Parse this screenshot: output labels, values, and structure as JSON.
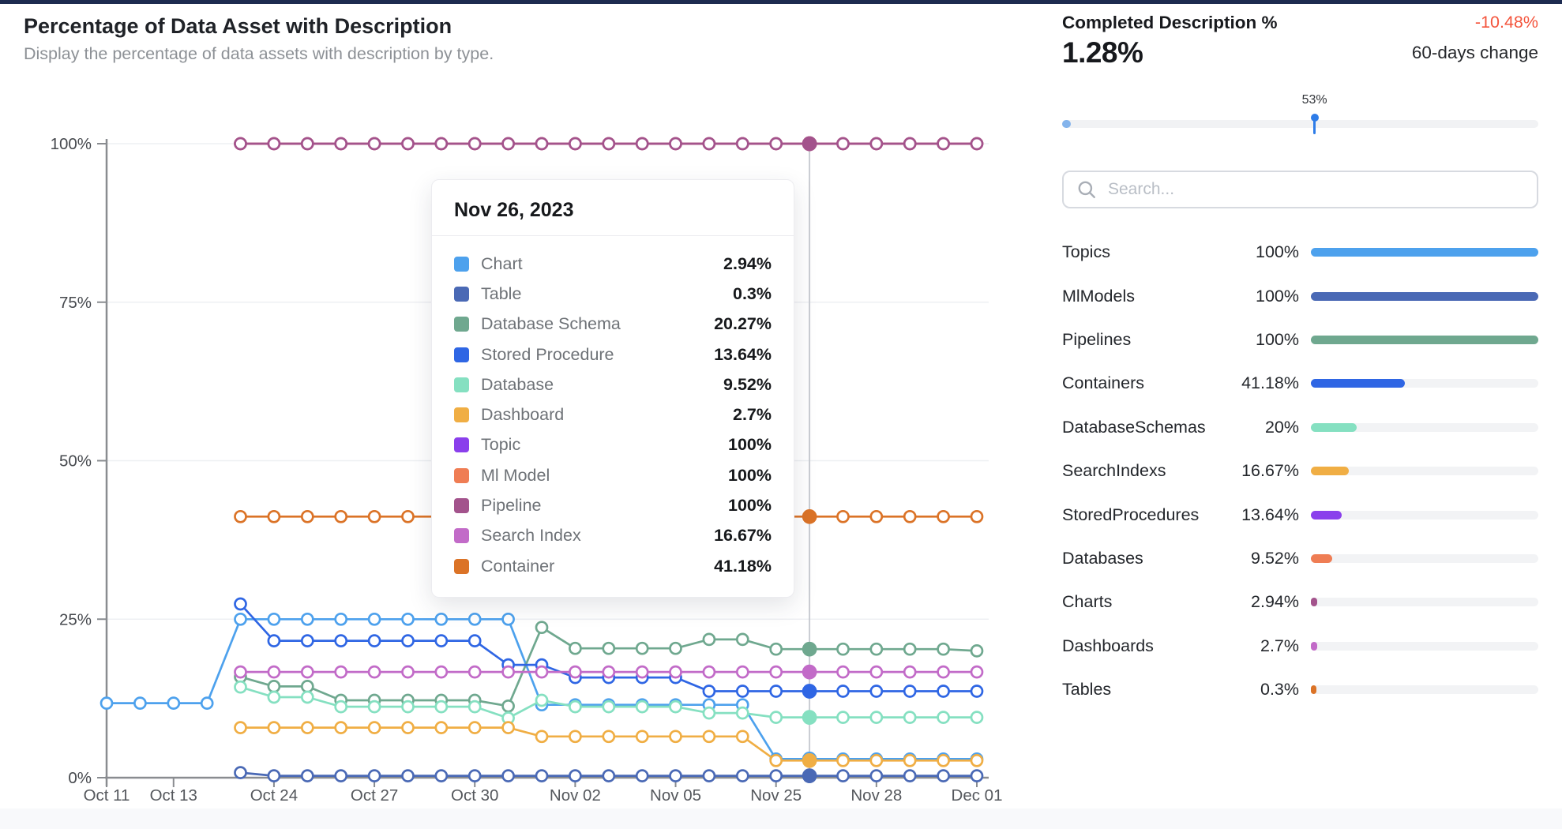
{
  "page": {
    "top_accent_color": "#1d2b50"
  },
  "header": {
    "title": "Percentage of Data Asset with Description",
    "subtitle": "Display the percentage of data assets with description by type."
  },
  "chart_data": {
    "type": "line",
    "title": "Percentage of Data Asset with Description",
    "ylim": [
      0,
      100
    ],
    "grid": true,
    "point_count": 27,
    "highlight_index": 21,
    "highlight_date": "Nov 26, 2023",
    "y_ticks": [
      {
        "value": 0,
        "label": "0%"
      },
      {
        "value": 25,
        "label": "25%"
      },
      {
        "value": 50,
        "label": "50%"
      },
      {
        "value": 75,
        "label": "75%"
      },
      {
        "value": 100,
        "label": "100%"
      }
    ],
    "x_ticks": [
      {
        "index": 0,
        "label": "Oct 11"
      },
      {
        "index": 2,
        "label": "Oct 13"
      },
      {
        "index": 5,
        "label": "Oct 24"
      },
      {
        "index": 8,
        "label": "Oct 27"
      },
      {
        "index": 11,
        "label": "Oct 30"
      },
      {
        "index": 14,
        "label": "Nov 02"
      },
      {
        "index": 17,
        "label": "Nov 05"
      },
      {
        "index": 20,
        "label": "Nov 25"
      },
      {
        "index": 23,
        "label": "Nov 28"
      },
      {
        "index": 26,
        "label": "Dec 01"
      }
    ],
    "series": [
      {
        "name": "Chart",
        "color": "#4DA1ED",
        "values": [
          11.76,
          11.76,
          11.76,
          11.76,
          25,
          25,
          25,
          25,
          25,
          25,
          25,
          25,
          25,
          11.5,
          11.5,
          11.5,
          11.5,
          11.5,
          11.5,
          11.5,
          2.94,
          2.94,
          2.94,
          2.94,
          2.94,
          2.94,
          2.94
        ]
      },
      {
        "name": "Table",
        "color": "#4A69B5",
        "values": [
          null,
          null,
          null,
          null,
          0.8,
          0.3,
          0.3,
          0.3,
          0.3,
          0.3,
          0.3,
          0.3,
          0.3,
          0.3,
          0.3,
          0.3,
          0.3,
          0.3,
          0.3,
          0.3,
          0.3,
          0.3,
          0.3,
          0.3,
          0.3,
          0.3,
          0.3
        ]
      },
      {
        "name": "Database Schema",
        "color": "#6FA88F",
        "values": [
          null,
          null,
          null,
          null,
          15.9,
          14.4,
          14.4,
          12.2,
          12.2,
          12.2,
          12.2,
          12.2,
          11.3,
          23.7,
          20.4,
          20.4,
          20.4,
          20.4,
          21.8,
          21.8,
          20.27,
          20.27,
          20.27,
          20.27,
          20.27,
          20.27,
          20
        ]
      },
      {
        "name": "Stored Procedure",
        "color": "#2F66E4",
        "values": [
          null,
          null,
          null,
          null,
          27.4,
          21.6,
          21.6,
          21.6,
          21.6,
          21.6,
          21.6,
          21.6,
          17.8,
          17.8,
          15.8,
          15.8,
          15.8,
          15.8,
          13.64,
          13.64,
          13.64,
          13.64,
          13.64,
          13.64,
          13.64,
          13.64,
          13.64
        ]
      },
      {
        "name": "Database",
        "color": "#85E0C1",
        "values": [
          null,
          null,
          null,
          null,
          14.3,
          12.7,
          12.7,
          11.2,
          11.2,
          11.2,
          11.2,
          11.2,
          9.4,
          12.2,
          11.2,
          11.2,
          11.2,
          11.2,
          10.2,
          10.2,
          9.52,
          9.52,
          9.52,
          9.52,
          9.52,
          9.52,
          9.52
        ]
      },
      {
        "name": "Dashboard",
        "color": "#F0AE44",
        "values": [
          null,
          null,
          null,
          null,
          7.9,
          7.9,
          7.9,
          7.9,
          7.9,
          7.9,
          7.9,
          7.9,
          7.9,
          6.5,
          6.5,
          6.5,
          6.5,
          6.5,
          6.5,
          6.5,
          2.7,
          2.7,
          2.7,
          2.7,
          2.7,
          2.7,
          2.7
        ]
      },
      {
        "name": "Topic",
        "color": "#8A3FEC",
        "values": [
          null,
          null,
          null,
          null,
          100,
          100,
          100,
          100,
          100,
          100,
          100,
          100,
          100,
          100,
          100,
          100,
          100,
          100,
          100,
          100,
          100,
          100,
          100,
          100,
          100,
          100,
          100
        ]
      },
      {
        "name": "Ml Model",
        "color": "#EF7D54",
        "values": [
          null,
          null,
          null,
          null,
          100,
          100,
          100,
          100,
          100,
          100,
          100,
          100,
          100,
          100,
          100,
          100,
          100,
          100,
          100,
          100,
          100,
          100,
          100,
          100,
          100,
          100,
          100
        ]
      },
      {
        "name": "Pipeline",
        "color": "#A3538C",
        "values": [
          null,
          null,
          null,
          null,
          100,
          100,
          100,
          100,
          100,
          100,
          100,
          100,
          100,
          100,
          100,
          100,
          100,
          100,
          100,
          100,
          100,
          100,
          100,
          100,
          100,
          100,
          100
        ]
      },
      {
        "name": "Search Index",
        "color": "#C26BC8",
        "values": [
          null,
          null,
          null,
          null,
          16.67,
          16.67,
          16.67,
          16.67,
          16.67,
          16.67,
          16.67,
          16.67,
          16.67,
          16.67,
          16.67,
          16.67,
          16.67,
          16.67,
          16.67,
          16.67,
          16.67,
          16.67,
          16.67,
          16.67,
          16.67,
          16.67,
          16.67
        ]
      },
      {
        "name": "Container",
        "color": "#DB7327",
        "values": [
          null,
          null,
          null,
          null,
          41.18,
          41.18,
          41.18,
          41.18,
          41.18,
          41.18,
          41.18,
          41.18,
          41.18,
          41.18,
          41.18,
          41.18,
          41.18,
          41.18,
          41.18,
          41.18,
          41.18,
          41.18,
          41.18,
          41.18,
          41.18,
          41.18,
          41.18
        ]
      }
    ]
  },
  "tooltip": {
    "date": "Nov 26, 2023",
    "rows": [
      {
        "label": "Chart",
        "value": "2.94%",
        "color": "#4DA1ED"
      },
      {
        "label": "Table",
        "value": "0.3%",
        "color": "#4A69B5"
      },
      {
        "label": "Database Schema",
        "value": "20.27%",
        "color": "#6FA88F"
      },
      {
        "label": "Stored Procedure",
        "value": "13.64%",
        "color": "#2F66E4"
      },
      {
        "label": "Database",
        "value": "9.52%",
        "color": "#85E0C1"
      },
      {
        "label": "Dashboard",
        "value": "2.7%",
        "color": "#F0AE44"
      },
      {
        "label": "Topic",
        "value": "100%",
        "color": "#8A3FEC"
      },
      {
        "label": "Ml Model",
        "value": "100%",
        "color": "#EF7D54"
      },
      {
        "label": "Pipeline",
        "value": "100%",
        "color": "#A3538C"
      },
      {
        "label": "Search Index",
        "value": "16.67%",
        "color": "#C26BC8"
      },
      {
        "label": "Container",
        "value": "41.18%",
        "color": "#DB7327"
      }
    ]
  },
  "panel": {
    "title": "Completed Description %",
    "value": "1.28%",
    "change": "-10.48%",
    "change_color": "#f4543c",
    "change_label": "60-days change",
    "slider": {
      "label": "53%",
      "percent": 53,
      "fill_percent": 1.28,
      "accent_color": "#2e7ce8"
    },
    "search": {
      "placeholder": "Search..."
    },
    "items": [
      {
        "label": "Topics",
        "value": "100%",
        "percent": 100,
        "color": "#4DA1ED"
      },
      {
        "label": "MlModels",
        "value": "100%",
        "percent": 100,
        "color": "#4A69B5"
      },
      {
        "label": "Pipelines",
        "value": "100%",
        "percent": 100,
        "color": "#6FA88F"
      },
      {
        "label": "Containers",
        "value": "41.18%",
        "percent": 41.18,
        "color": "#2F66E4"
      },
      {
        "label": "DatabaseSchemas",
        "value": "20%",
        "percent": 20,
        "color": "#85E0C1"
      },
      {
        "label": "SearchIndexs",
        "value": "16.67%",
        "percent": 16.67,
        "color": "#F0AE44"
      },
      {
        "label": "StoredProcedures",
        "value": "13.64%",
        "percent": 13.64,
        "color": "#8A3FEC"
      },
      {
        "label": "Databases",
        "value": "9.52%",
        "percent": 9.52,
        "color": "#EF7D54"
      },
      {
        "label": "Charts",
        "value": "2.94%",
        "percent": 2.94,
        "color": "#A3538C"
      },
      {
        "label": "Dashboards",
        "value": "2.7%",
        "percent": 2.7,
        "color": "#C26BC8"
      },
      {
        "label": "Tables",
        "value": "0.3%",
        "percent": 0.3,
        "color": "#DB7327"
      }
    ]
  }
}
